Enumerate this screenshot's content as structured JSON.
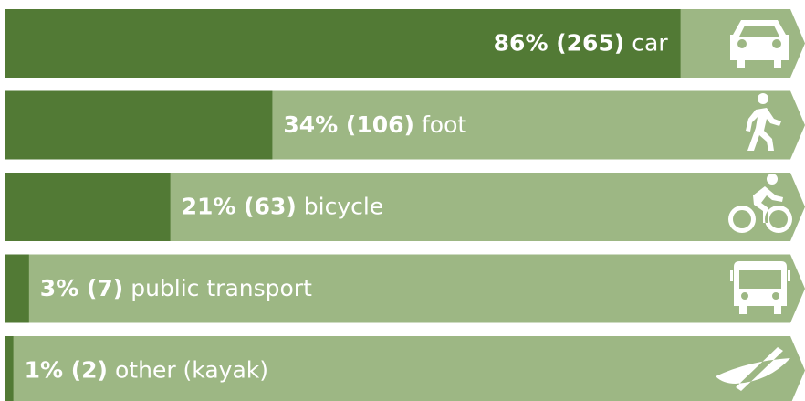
{
  "chart_data": {
    "type": "bar",
    "categories": [
      "car",
      "foot",
      "bicycle",
      "public transport",
      "other (kayak)"
    ],
    "values": [
      86,
      34,
      21,
      3,
      1
    ],
    "value_labels": [
      "86% (265)",
      "34% (106)",
      "21% (63)",
      "3% (7)",
      "1% (2)"
    ],
    "xlim": [
      0,
      100
    ],
    "color": "#527a35",
    "background_color": "#9db784"
  }
}
